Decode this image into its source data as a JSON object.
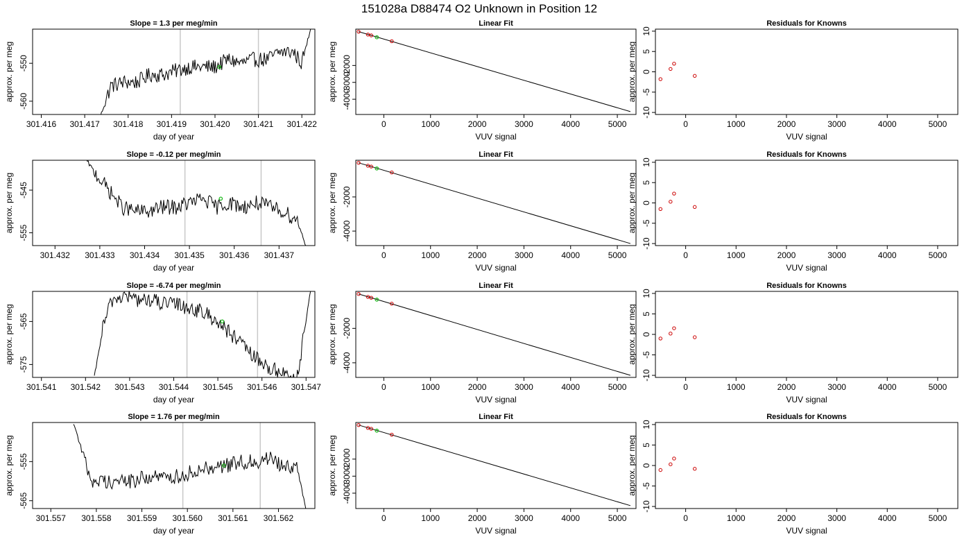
{
  "page_title": "151028a     D88474   O2 Unknown in Position  12",
  "colors": {
    "trace": "#000000",
    "vline": "#c8c8c8",
    "known": "#cc0000",
    "unknown": "#22bb22",
    "axis": "#000000"
  },
  "chart_data": [
    {
      "type": "line",
      "title": "Slope =  1.3  per meg/min",
      "xlabel": "day of year",
      "ylabel": "approx. per meg",
      "xlim": [
        301.4158,
        301.4223
      ],
      "ylim": [
        -563.5,
        -541
      ],
      "xticks": [
        301.416,
        301.417,
        301.418,
        301.419,
        301.42,
        301.421,
        301.422
      ],
      "xtick_labels": [
        "301.416",
        "301.417",
        "301.418",
        "301.419",
        "301.420",
        "301.421",
        "301.422"
      ],
      "yticks": [
        -550,
        -560
      ],
      "ytick_labels": [
        "-550",
        "-560"
      ],
      "vlines": [
        301.4192,
        301.421
      ],
      "trace": {
        "x": [
          301.4173,
          301.4176,
          301.4179,
          301.4182,
          301.4185,
          301.4188,
          301.4191,
          301.4194,
          301.4197,
          301.42,
          301.4203,
          301.4206,
          301.4209,
          301.4212,
          301.4215,
          301.4218,
          301.422,
          301.4222
        ],
        "y": [
          -566,
          -556,
          -555,
          -555,
          -553,
          -553,
          -552,
          -551,
          -551,
          -551,
          -549,
          -550,
          -549,
          -549,
          -547,
          -547,
          -550,
          -541
        ]
      },
      "unknown_point": {
        "x": 301.4201,
        "y": -551
      }
    },
    {
      "type": "scatter",
      "title": "Linear Fit",
      "xlabel": "VUV signal",
      "ylabel": "approx. per meg",
      "xlim": [
        -600,
        5400
      ],
      "ylim": [
        -4900,
        150
      ],
      "xticks": [
        0,
        1000,
        2000,
        3000,
        4000,
        5000
      ],
      "xtick_labels": [
        "0",
        "1000",
        "2000",
        "3000",
        "4000",
        "5000"
      ],
      "yticks": [
        -2000,
        -3000,
        -4000
      ],
      "ytick_labels": [
        "-2000",
        "-3000",
        "-4000"
      ],
      "fit_line": {
        "x": [
          -540,
          5280
        ],
        "y": [
          0,
          -4730
        ]
      },
      "knowns": {
        "x": [
          -540,
          -340,
          -270,
          170
        ],
        "y": [
          0,
          -170,
          -220,
          -565
        ]
      },
      "unknown": {
        "x": -150,
        "y": -330
      }
    },
    {
      "type": "scatter",
      "title": "Residuals for Knowns",
      "xlabel": "VUV signal",
      "ylabel": "approx. per meg",
      "xlim": [
        -600,
        5400
      ],
      "ylim": [
        -10.5,
        10.5
      ],
      "xticks": [
        0,
        1000,
        2000,
        3000,
        4000,
        5000
      ],
      "xtick_labels": [
        "0",
        "1000",
        "2000",
        "3000",
        "4000",
        "5000"
      ],
      "yticks": [
        10,
        5,
        0,
        -5,
        -10
      ],
      "ytick_labels": [
        "10",
        "5",
        "0",
        "-5",
        "-10"
      ],
      "points": {
        "x": [
          -500,
          -300,
          -230,
          180
        ],
        "y": [
          -1.8,
          0.7,
          2.0,
          -1.0
        ]
      }
    },
    {
      "type": "line",
      "title": "Slope =  -0.12  per meg/min",
      "xlabel": "day of year",
      "ylabel": "approx. per meg",
      "xlim": [
        301.4315,
        301.4378
      ],
      "ylim": [
        -558,
        -538
      ],
      "xticks": [
        301.432,
        301.433,
        301.434,
        301.435,
        301.436,
        301.437
      ],
      "xtick_labels": [
        "301.432",
        "301.433",
        "301.434",
        "301.435",
        "301.436",
        "301.437"
      ],
      "yticks": [
        -545,
        -555
      ],
      "ytick_labels": [
        "-545",
        "-555"
      ],
      "vlines": [
        301.4349,
        301.4366
      ],
      "trace": {
        "x": [
          301.4327,
          301.4329,
          301.4332,
          301.4335,
          301.4338,
          301.4341,
          301.4344,
          301.4347,
          301.435,
          301.4353,
          301.4356,
          301.4359,
          301.4362,
          301.4365,
          301.4368,
          301.4371,
          301.4374,
          301.4376
        ],
        "y": [
          -538,
          -541,
          -545,
          -549,
          -550,
          -550,
          -549,
          -549,
          -548,
          -547,
          -549,
          -548,
          -549,
          -548,
          -549,
          -550,
          -552,
          -558
        ]
      },
      "unknown_point": {
        "x": 301.4357,
        "y": -547
      }
    },
    {
      "type": "scatter",
      "title": "Linear Fit",
      "xlabel": "VUV signal",
      "ylabel": "approx. per meg",
      "xlim": [
        -600,
        5400
      ],
      "ylim": [
        -4850,
        150
      ],
      "xticks": [
        0,
        1000,
        2000,
        3000,
        4000,
        5000
      ],
      "xtick_labels": [
        "0",
        "1000",
        "2000",
        "3000",
        "4000",
        "5000"
      ],
      "yticks": [
        -2000,
        -4000
      ],
      "ytick_labels": [
        "-2000",
        "-4000"
      ],
      "fit_line": {
        "x": [
          -540,
          5280
        ],
        "y": [
          0,
          -4730
        ]
      },
      "knowns": {
        "x": [
          -540,
          -340,
          -270,
          170
        ],
        "y": [
          0,
          -170,
          -220,
          -565
        ]
      },
      "unknown": {
        "x": -150,
        "y": -330
      }
    },
    {
      "type": "scatter",
      "title": "Residuals for Knowns",
      "xlabel": "VUV signal",
      "ylabel": "approx. per meg",
      "xlim": [
        -600,
        5400
      ],
      "ylim": [
        -10.5,
        10.5
      ],
      "xticks": [
        0,
        1000,
        2000,
        3000,
        4000,
        5000
      ],
      "xtick_labels": [
        "0",
        "1000",
        "2000",
        "3000",
        "4000",
        "5000"
      ],
      "yticks": [
        10,
        5,
        0,
        -5,
        -10
      ],
      "ytick_labels": [
        "10",
        "5",
        "0",
        "-5",
        "-10"
      ],
      "points": {
        "x": [
          -500,
          -300,
          -230,
          180
        ],
        "y": [
          -1.5,
          0.3,
          2.3,
          -1.0
        ]
      }
    },
    {
      "type": "line",
      "title": "Slope =  -6.74  per meg/min",
      "xlabel": "day of year",
      "ylabel": "approx. per meg",
      "xlim": [
        301.5408,
        301.5472
      ],
      "ylim": [
        -578,
        -558
      ],
      "xticks": [
        301.541,
        301.542,
        301.543,
        301.544,
        301.545,
        301.546,
        301.547
      ],
      "xtick_labels": [
        "301.541",
        "301.542",
        "301.543",
        "301.544",
        "301.545",
        "301.546",
        "301.547"
      ],
      "yticks": [
        -565,
        -575
      ],
      "ytick_labels": [
        "-565",
        "-575"
      ],
      "vlines": [
        301.5443,
        301.5459
      ],
      "trace": {
        "x": [
          301.5422,
          301.5424,
          301.5426,
          301.5429,
          301.5432,
          301.5435,
          301.5438,
          301.5441,
          301.5444,
          301.5447,
          301.545,
          301.5453,
          301.5456,
          301.5459,
          301.5462,
          301.5465,
          301.5468,
          301.5471
        ],
        "y": [
          -578,
          -566,
          -560,
          -559,
          -560,
          -560,
          -561,
          -561,
          -562,
          -563,
          -565,
          -568,
          -571,
          -574,
          -576,
          -577,
          -578,
          -558
        ]
      },
      "unknown_point": {
        "x": 301.5451,
        "y": -565
      }
    },
    {
      "type": "scatter",
      "title": "Linear Fit",
      "xlabel": "VUV signal",
      "ylabel": "approx. per meg",
      "xlim": [
        -600,
        5400
      ],
      "ylim": [
        -4850,
        150
      ],
      "xticks": [
        0,
        1000,
        2000,
        3000,
        4000,
        5000
      ],
      "xtick_labels": [
        "0",
        "1000",
        "2000",
        "3000",
        "4000",
        "5000"
      ],
      "yticks": [
        -2000,
        -4000
      ],
      "ytick_labels": [
        "-2000",
        "-4000"
      ],
      "fit_line": {
        "x": [
          -540,
          5280
        ],
        "y": [
          0,
          -4730
        ]
      },
      "knowns": {
        "x": [
          -540,
          -340,
          -270,
          170
        ],
        "y": [
          0,
          -170,
          -220,
          -565
        ]
      },
      "unknown": {
        "x": -150,
        "y": -330
      }
    },
    {
      "type": "scatter",
      "title": "Residuals for Knowns",
      "xlabel": "VUV signal",
      "ylabel": "approx. per meg",
      "xlim": [
        -600,
        5400
      ],
      "ylim": [
        -10.5,
        10.5
      ],
      "xticks": [
        0,
        1000,
        2000,
        3000,
        4000,
        5000
      ],
      "xtick_labels": [
        "0",
        "1000",
        "2000",
        "3000",
        "4000",
        "5000"
      ],
      "yticks": [
        10,
        5,
        0,
        -5,
        -10
      ],
      "ytick_labels": [
        "10",
        "5",
        "0",
        "-5",
        "-10"
      ],
      "points": {
        "x": [
          -500,
          -300,
          -230,
          180
        ],
        "y": [
          -1.0,
          0.2,
          1.5,
          -0.7
        ]
      }
    },
    {
      "type": "line",
      "title": "Slope =  1.76  per meg/min",
      "xlabel": "day of year",
      "ylabel": "approx. per meg",
      "xlim": [
        301.5566,
        301.5628
      ],
      "ylim": [
        -567,
        -545
      ],
      "xticks": [
        301.557,
        301.558,
        301.559,
        301.56,
        301.561,
        301.562
      ],
      "xtick_labels": [
        "301.557",
        "301.558",
        "301.559",
        "301.560",
        "301.561",
        "301.562"
      ],
      "yticks": [
        -555,
        -565
      ],
      "ytick_labels": [
        "-555",
        "-565"
      ],
      "vlines": [
        301.5599,
        301.5616
      ],
      "trace": {
        "x": [
          301.5575,
          301.5577,
          301.5579,
          301.5582,
          301.5585,
          301.5588,
          301.5591,
          301.5594,
          301.5597,
          301.56,
          301.5603,
          301.5606,
          301.5609,
          301.5612,
          301.5615,
          301.5618,
          301.5621,
          301.5624,
          301.5626
        ],
        "y": [
          -545,
          -553,
          -560,
          -560,
          -560,
          -560,
          -559,
          -559,
          -559,
          -558,
          -557,
          -556,
          -556,
          -555,
          -555,
          -554,
          -556,
          -556,
          -567
        ]
      },
      "unknown_point": {
        "x": 301.5608,
        "y": -556
      }
    },
    {
      "type": "scatter",
      "title": "Linear Fit",
      "xlabel": "VUV signal",
      "ylabel": "approx. per meg",
      "xlim": [
        -600,
        5400
      ],
      "ylim": [
        -4900,
        150
      ],
      "xticks": [
        0,
        1000,
        2000,
        3000,
        4000,
        5000
      ],
      "xtick_labels": [
        "0",
        "1000",
        "2000",
        "3000",
        "4000",
        "5000"
      ],
      "yticks": [
        -2000,
        -3000,
        -4000
      ],
      "ytick_labels": [
        "-2000",
        "-3000",
        "-4000"
      ],
      "fit_line": {
        "x": [
          -540,
          5280
        ],
        "y": [
          0,
          -4730
        ]
      },
      "knowns": {
        "x": [
          -540,
          -340,
          -270,
          170
        ],
        "y": [
          0,
          -170,
          -220,
          -565
        ]
      },
      "unknown": {
        "x": -150,
        "y": -330
      }
    },
    {
      "type": "scatter",
      "title": "Residuals for Knowns",
      "xlabel": "VUV signal",
      "ylabel": "approx. per meg",
      "xlim": [
        -600,
        5400
      ],
      "ylim": [
        -10.5,
        10.5
      ],
      "xticks": [
        0,
        1000,
        2000,
        3000,
        4000,
        5000
      ],
      "xtick_labels": [
        "0",
        "1000",
        "2000",
        "3000",
        "4000",
        "5000"
      ],
      "yticks": [
        10,
        5,
        0,
        -5,
        -10
      ],
      "ytick_labels": [
        "10",
        "5",
        "0",
        "-5",
        "-10"
      ],
      "points": {
        "x": [
          -500,
          -300,
          -230,
          180
        ],
        "y": [
          -1.1,
          0.3,
          1.7,
          -0.8
        ]
      }
    }
  ]
}
